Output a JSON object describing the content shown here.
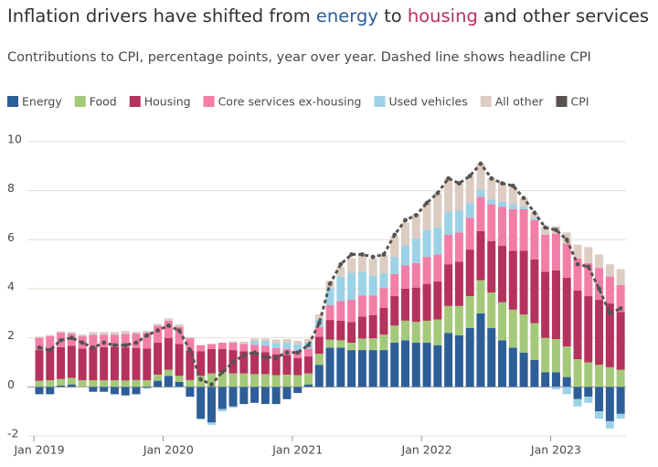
{
  "chart_data": {
    "type": "bar",
    "stacked": true,
    "title": [
      {
        "text": "Inflation drivers have shifted from "
      },
      {
        "text": "energy",
        "color": "#2e5e98"
      },
      {
        "text": " to "
      },
      {
        "text": "housing",
        "color": "#b5325d"
      },
      {
        "text": " and other services"
      }
    ],
    "subtitle": "Contributions to CPI, percentage points, year over year. Dashed line shows headline CPI",
    "categories": [
      "Jan 2019",
      null,
      null,
      null,
      null,
      null,
      null,
      null,
      null,
      null,
      null,
      null,
      "Jan 2020",
      null,
      null,
      null,
      null,
      null,
      null,
      null,
      null,
      null,
      null,
      null,
      "Jan 2021",
      null,
      null,
      null,
      null,
      null,
      null,
      null,
      null,
      null,
      null,
      null,
      "Jan 2022",
      null,
      null,
      null,
      null,
      null,
      null,
      null,
      null,
      null,
      null,
      null,
      "Jan 2023",
      null,
      null,
      null,
      null,
      null,
      null
    ],
    "ylim": [
      -2,
      10
    ],
    "yticks": [
      -2,
      0,
      2,
      4,
      6,
      8,
      10
    ],
    "grid": true,
    "legend": "top",
    "series": [
      {
        "name": "Energy",
        "color": "#2e5e98",
        "values": [
          -0.3,
          -0.3,
          0.05,
          0.1,
          0.0,
          -0.2,
          -0.2,
          -0.3,
          -0.35,
          -0.3,
          -0.05,
          0.25,
          0.45,
          0.2,
          -0.4,
          -1.3,
          -1.45,
          -0.9,
          -0.8,
          -0.7,
          -0.65,
          -0.7,
          -0.7,
          -0.5,
          -0.25,
          0.1,
          0.9,
          1.6,
          1.6,
          1.5,
          1.5,
          1.5,
          1.5,
          1.8,
          1.9,
          1.8,
          1.8,
          1.7,
          2.2,
          2.1,
          2.4,
          3.0,
          2.4,
          1.9,
          1.6,
          1.4,
          1.1,
          0.6,
          0.6,
          0.4,
          -0.5,
          -0.4,
          -1.0,
          -1.4,
          -1.1
        ]
      },
      {
        "name": "Food",
        "color": "#a5c97a",
        "values": [
          0.25,
          0.27,
          0.27,
          0.27,
          0.27,
          0.27,
          0.27,
          0.27,
          0.26,
          0.28,
          0.27,
          0.25,
          0.25,
          0.25,
          0.28,
          0.45,
          0.55,
          0.6,
          0.55,
          0.55,
          0.52,
          0.52,
          0.48,
          0.5,
          0.48,
          0.45,
          0.45,
          0.33,
          0.3,
          0.3,
          0.47,
          0.48,
          0.63,
          0.7,
          0.8,
          0.85,
          0.9,
          1.05,
          1.1,
          1.2,
          1.3,
          1.35,
          1.45,
          1.55,
          1.55,
          1.55,
          1.5,
          1.4,
          1.35,
          1.25,
          1.13,
          1.0,
          0.9,
          0.8,
          0.7
        ]
      },
      {
        "name": "Housing",
        "color": "#b5325d",
        "values": [
          1.25,
          1.3,
          1.3,
          1.3,
          1.3,
          1.35,
          1.35,
          1.35,
          1.35,
          1.3,
          1.3,
          1.3,
          1.3,
          1.3,
          1.2,
          1.0,
          1.0,
          0.95,
          0.95,
          0.9,
          0.9,
          0.9,
          0.85,
          0.8,
          0.7,
          0.7,
          0.7,
          0.8,
          0.8,
          0.85,
          0.9,
          0.95,
          1.1,
          1.2,
          1.3,
          1.4,
          1.5,
          1.55,
          1.7,
          1.8,
          1.9,
          2.0,
          2.1,
          2.3,
          2.4,
          2.6,
          2.6,
          2.7,
          2.8,
          2.8,
          2.8,
          2.7,
          2.65,
          2.6,
          2.35
        ]
      },
      {
        "name": "Core services ex-housing",
        "color": "#f27ea8",
        "values": [
          0.5,
          0.5,
          0.6,
          0.5,
          0.5,
          0.5,
          0.5,
          0.5,
          0.55,
          0.6,
          0.65,
          0.7,
          0.7,
          0.7,
          0.5,
          0.25,
          0.2,
          0.25,
          0.3,
          0.3,
          0.3,
          0.25,
          0.25,
          0.25,
          0.3,
          0.3,
          0.4,
          0.6,
          0.8,
          0.9,
          0.85,
          0.8,
          0.8,
          0.9,
          0.95,
          1.0,
          1.1,
          1.1,
          1.2,
          1.2,
          1.3,
          1.4,
          1.5,
          1.6,
          1.7,
          1.7,
          1.6,
          1.5,
          1.5,
          1.4,
          1.3,
          1.35,
          1.3,
          1.1,
          1.1
        ]
      },
      {
        "name": "Used vehicles",
        "color": "#9dd2e6",
        "values": [
          0,
          0,
          0,
          0.02,
          0.02,
          0.02,
          0.02,
          0.02,
          0.02,
          0.02,
          0.02,
          0.02,
          0,
          -0.03,
          0,
          -0.03,
          -0.1,
          -0.1,
          -0.05,
          0,
          0.15,
          0.2,
          0.2,
          0.25,
          0.25,
          0.25,
          0.3,
          0.7,
          1.0,
          1.1,
          1.0,
          0.8,
          0.6,
          0.7,
          0.8,
          1.0,
          1.1,
          1.1,
          0.95,
          0.9,
          0.6,
          0.3,
          0.2,
          0.2,
          0.2,
          0.1,
          0.1,
          0.02,
          -0.1,
          -0.3,
          -0.3,
          -0.25,
          -0.3,
          -0.3,
          -0.2
        ]
      },
      {
        "name": "All other",
        "color": "#dcccc2",
        "values": [
          0.05,
          0.05,
          0.05,
          0.05,
          0.05,
          0.1,
          0.1,
          0.1,
          0.1,
          0.05,
          0.05,
          0.05,
          0.1,
          0.1,
          0.05,
          0,
          0,
          0,
          0.05,
          0.1,
          0.1,
          0.1,
          0.15,
          0.15,
          0.15,
          0.15,
          0.2,
          0.3,
          0.4,
          0.6,
          0.65,
          0.7,
          0.75,
          0.85,
          0.95,
          1.0,
          1.1,
          1.4,
          1.35,
          1.1,
          1.1,
          1.05,
          0.85,
          0.75,
          0.75,
          0.35,
          0.2,
          0.3,
          0.3,
          0.45,
          0.57,
          0.65,
          0.55,
          0.5,
          0.65
        ]
      },
      {
        "name": "CPI",
        "color": "#575250",
        "kind": "line",
        "values": [
          1.6,
          1.5,
          1.9,
          2.0,
          1.8,
          1.6,
          1.8,
          1.7,
          1.7,
          1.8,
          2.1,
          2.3,
          2.5,
          2.3,
          1.5,
          0.3,
          0.1,
          0.6,
          1.0,
          1.3,
          1.4,
          1.2,
          1.2,
          1.4,
          1.4,
          1.7,
          2.6,
          4.2,
          5.0,
          5.4,
          5.4,
          5.3,
          5.4,
          6.2,
          6.8,
          7.0,
          7.5,
          7.9,
          8.5,
          8.3,
          8.6,
          9.1,
          8.5,
          8.3,
          8.2,
          7.7,
          7.1,
          6.5,
          6.4,
          6.0,
          5.0,
          4.9,
          4.0,
          3.0,
          3.2
        ]
      }
    ]
  }
}
